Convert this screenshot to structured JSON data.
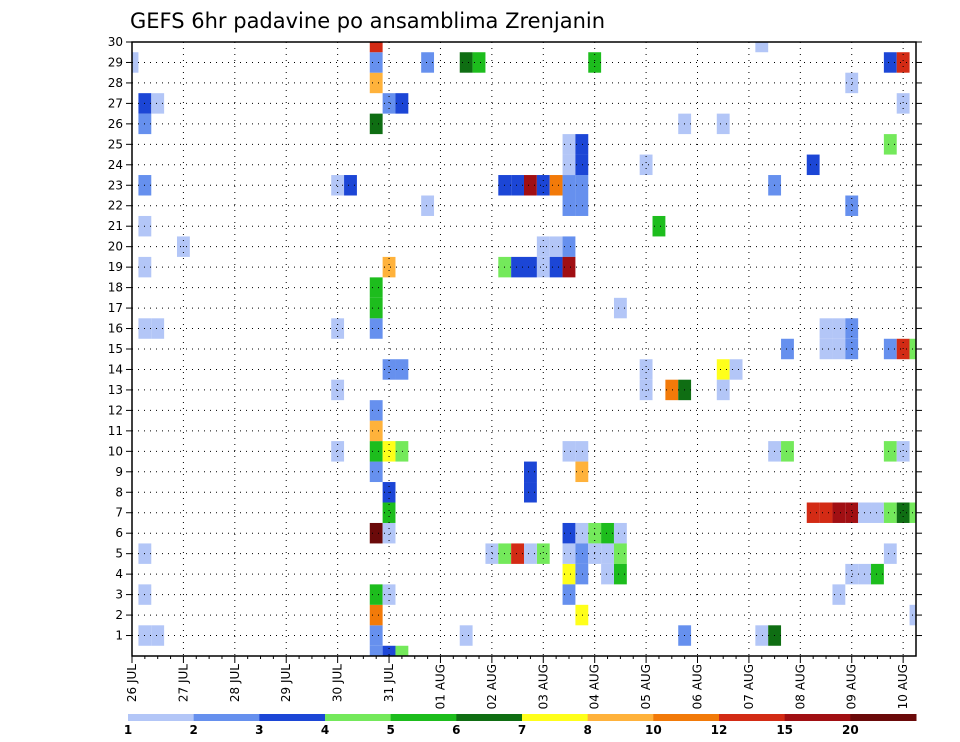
{
  "chart_data": {
    "type": "heatmap",
    "title": "GEFS 6hr padavine po ansamblima Zrenjanin",
    "xlabel": "",
    "ylabel": "",
    "x_tick_labels": [
      "26 JUL",
      "27 JUL",
      "28 JUL",
      "29 JUL",
      "30 JUL",
      "31 JUL",
      "01 AUG",
      "02 AUG",
      "03 AUG",
      "04 AUG",
      "05 AUG",
      "06 AUG",
      "07 AUG",
      "08 AUG",
      "09 AUG",
      "10 AUG"
    ],
    "x_range": [
      "26 JUL 00Z",
      "10 AUG 06Z"
    ],
    "y_range": [
      0,
      30
    ],
    "y_tick_labels": [
      "1",
      "2",
      "3",
      "4",
      "5",
      "6",
      "7",
      "8",
      "9",
      "10",
      "11",
      "12",
      "13",
      "14",
      "15",
      "16",
      "17",
      "18",
      "19",
      "20",
      "21",
      "22",
      "23",
      "24",
      "25",
      "26",
      "27",
      "28",
      "29",
      "30"
    ],
    "grid": true,
    "grid_style": "dotted",
    "colorbar": {
      "labels": [
        "1",
        "2",
        "3",
        "4",
        "5",
        "6",
        "7",
        "8",
        "10",
        "12",
        "15",
        "20"
      ],
      "colors": [
        "#b3c6f7",
        "#6690ee",
        "#1c46d6",
        "#74e95b",
        "#1dbd1d",
        "#0f6e13",
        "#ffff1a",
        "#ffb23b",
        "#f27a09",
        "#d32b15",
        "#a10f13",
        "#6b0a0a"
      ]
    },
    "note": "cells: [day_from_26JUL, member, level_index]; level_index maps to colorbar.colors",
    "cells": [
      [
        0.25,
        1,
        0
      ],
      [
        0.5,
        1,
        0
      ],
      [
        0.25,
        5,
        0
      ],
      [
        0.25,
        3,
        0
      ],
      [
        0.5,
        16,
        0
      ],
      [
        0.25,
        16,
        0
      ],
      [
        0.25,
        19,
        0
      ],
      [
        0.25,
        21,
        0
      ],
      [
        0.25,
        23,
        1
      ],
      [
        0.25,
        26,
        1
      ],
      [
        0.25,
        27,
        2
      ],
      [
        0.5,
        27,
        0
      ],
      [
        0.0,
        29,
        0
      ],
      [
        1.0,
        20,
        0
      ],
      [
        4.0,
        16,
        0
      ],
      [
        4.0,
        13,
        0
      ],
      [
        4.0,
        10,
        0
      ],
      [
        4.0,
        23,
        0
      ],
      [
        4.25,
        23,
        2
      ],
      [
        4.75,
        0,
        1
      ],
      [
        5.0,
        0,
        2
      ],
      [
        5.25,
        0,
        3
      ],
      [
        4.75,
        1,
        1
      ],
      [
        4.75,
        2,
        8
      ],
      [
        4.75,
        3,
        4
      ],
      [
        4.75,
        6,
        11
      ],
      [
        4.75,
        9,
        1
      ],
      [
        4.75,
        10,
        4
      ],
      [
        4.75,
        11,
        7
      ],
      [
        4.75,
        12,
        1
      ],
      [
        4.75,
        16,
        1
      ],
      [
        4.75,
        17,
        4
      ],
      [
        4.75,
        18,
        4
      ],
      [
        4.75,
        26,
        5
      ],
      [
        4.75,
        28,
        7
      ],
      [
        4.75,
        29,
        1
      ],
      [
        4.75,
        30,
        9
      ],
      [
        5.0,
        3,
        0
      ],
      [
        5.0,
        6,
        0
      ],
      [
        5.0,
        7,
        4
      ],
      [
        5.0,
        8,
        2
      ],
      [
        5.0,
        10,
        6
      ],
      [
        5.0,
        14,
        1
      ],
      [
        5.0,
        19,
        7
      ],
      [
        5.0,
        27,
        1
      ],
      [
        5.25,
        10,
        3
      ],
      [
        5.25,
        14,
        1
      ],
      [
        5.25,
        27,
        2
      ],
      [
        5.75,
        29,
        1
      ],
      [
        5.75,
        22,
        0
      ],
      [
        6.5,
        1,
        0
      ],
      [
        6.5,
        29,
        5
      ],
      [
        6.75,
        29,
        4
      ],
      [
        7.0,
        5,
        0
      ],
      [
        7.25,
        5,
        3
      ],
      [
        7.25,
        19,
        3
      ],
      [
        7.5,
        5,
        9
      ],
      [
        7.5,
        19,
        2
      ],
      [
        7.5,
        23,
        2
      ],
      [
        7.25,
        23,
        2
      ],
      [
        7.75,
        23,
        10
      ],
      [
        8.0,
        23,
        2
      ],
      [
        8.25,
        23,
        8
      ],
      [
        8.5,
        23,
        1
      ],
      [
        8.75,
        23,
        1
      ],
      [
        8.0,
        20,
        0
      ],
      [
        8.25,
        20,
        0
      ],
      [
        8.5,
        20,
        1
      ],
      [
        8.0,
        19,
        0
      ],
      [
        7.75,
        19,
        2
      ],
      [
        8.25,
        19,
        2
      ],
      [
        8.5,
        19,
        10
      ],
      [
        7.75,
        8,
        2
      ],
      [
        7.75,
        9,
        2
      ],
      [
        8.5,
        6,
        2
      ],
      [
        8.5,
        4,
        6
      ],
      [
        8.5,
        3,
        1
      ],
      [
        8.5,
        5,
        0
      ],
      [
        8.5,
        10,
        0
      ],
      [
        8.5,
        24,
        0
      ],
      [
        8.5,
        25,
        0
      ],
      [
        8.75,
        6,
        0
      ],
      [
        8.75,
        5,
        1
      ],
      [
        8.75,
        4,
        1
      ],
      [
        8.75,
        10,
        0
      ],
      [
        8.75,
        9,
        7
      ],
      [
        8.75,
        24,
        2
      ],
      [
        8.75,
        25,
        2
      ],
      [
        8.75,
        2,
        6
      ],
      [
        9.0,
        6,
        3
      ],
      [
        9.25,
        6,
        4
      ],
      [
        9.0,
        5,
        0
      ],
      [
        9.25,
        5,
        0
      ],
      [
        9.5,
        6,
        0
      ],
      [
        9.5,
        5,
        3
      ],
      [
        9.5,
        4,
        4
      ],
      [
        9.25,
        4,
        0
      ],
      [
        9.0,
        29,
        4
      ],
      [
        8.0,
        5,
        3
      ],
      [
        7.75,
        5,
        0
      ],
      [
        8.5,
        22,
        1
      ],
      [
        8.75,
        22,
        1
      ],
      [
        9.5,
        17,
        0
      ],
      [
        10.0,
        24,
        0
      ],
      [
        10.0,
        14,
        0
      ],
      [
        10.0,
        13,
        0
      ],
      [
        10.25,
        21,
        4
      ],
      [
        10.5,
        13,
        8
      ],
      [
        10.75,
        13,
        5
      ],
      [
        10.75,
        1,
        1
      ],
      [
        10.75,
        26,
        0
      ],
      [
        11.5,
        26,
        0
      ],
      [
        11.5,
        14,
        6
      ],
      [
        11.75,
        14,
        0
      ],
      [
        11.5,
        13,
        0
      ],
      [
        12.25,
        1,
        0
      ],
      [
        12.5,
        1,
        5
      ],
      [
        12.5,
        10,
        0
      ],
      [
        12.75,
        10,
        3
      ],
      [
        12.5,
        23,
        1
      ],
      [
        12.25,
        30,
        0
      ],
      [
        12.75,
        15,
        1
      ],
      [
        13.25,
        24,
        2
      ],
      [
        13.25,
        7,
        9
      ],
      [
        13.5,
        7,
        9
      ],
      [
        13.75,
        7,
        10
      ],
      [
        14.0,
        7,
        10
      ],
      [
        14.25,
        7,
        0
      ],
      [
        14.5,
        7,
        0
      ],
      [
        14.75,
        7,
        3
      ],
      [
        15.0,
        7,
        5
      ],
      [
        15.25,
        7,
        3
      ],
      [
        15.5,
        7,
        0
      ],
      [
        13.5,
        16,
        0
      ],
      [
        13.75,
        16,
        0
      ],
      [
        14.0,
        16,
        1
      ],
      [
        13.5,
        15,
        0
      ],
      [
        13.75,
        15,
        0
      ],
      [
        14.0,
        15,
        1
      ],
      [
        13.75,
        3,
        0
      ],
      [
        14.0,
        4,
        0
      ],
      [
        14.25,
        4,
        0
      ],
      [
        14.5,
        4,
        4
      ],
      [
        14.0,
        22,
        1
      ],
      [
        14.0,
        28,
        0
      ],
      [
        14.75,
        15,
        1
      ],
      [
        15.0,
        15,
        9
      ],
      [
        15.25,
        15,
        3
      ],
      [
        14.75,
        10,
        3
      ],
      [
        15.0,
        10,
        0
      ],
      [
        14.75,
        5,
        0
      ],
      [
        14.75,
        25,
        3
      ],
      [
        14.75,
        29,
        2
      ],
      [
        15.0,
        29,
        9
      ],
      [
        15.0,
        27,
        0
      ],
      [
        15.25,
        2,
        0
      ],
      [
        15.5,
        0,
        1
      ],
      [
        15.75,
        0,
        1
      ],
      [
        15.75,
        27,
        0
      ],
      [
        15.75,
        16,
        0
      ]
    ]
  }
}
